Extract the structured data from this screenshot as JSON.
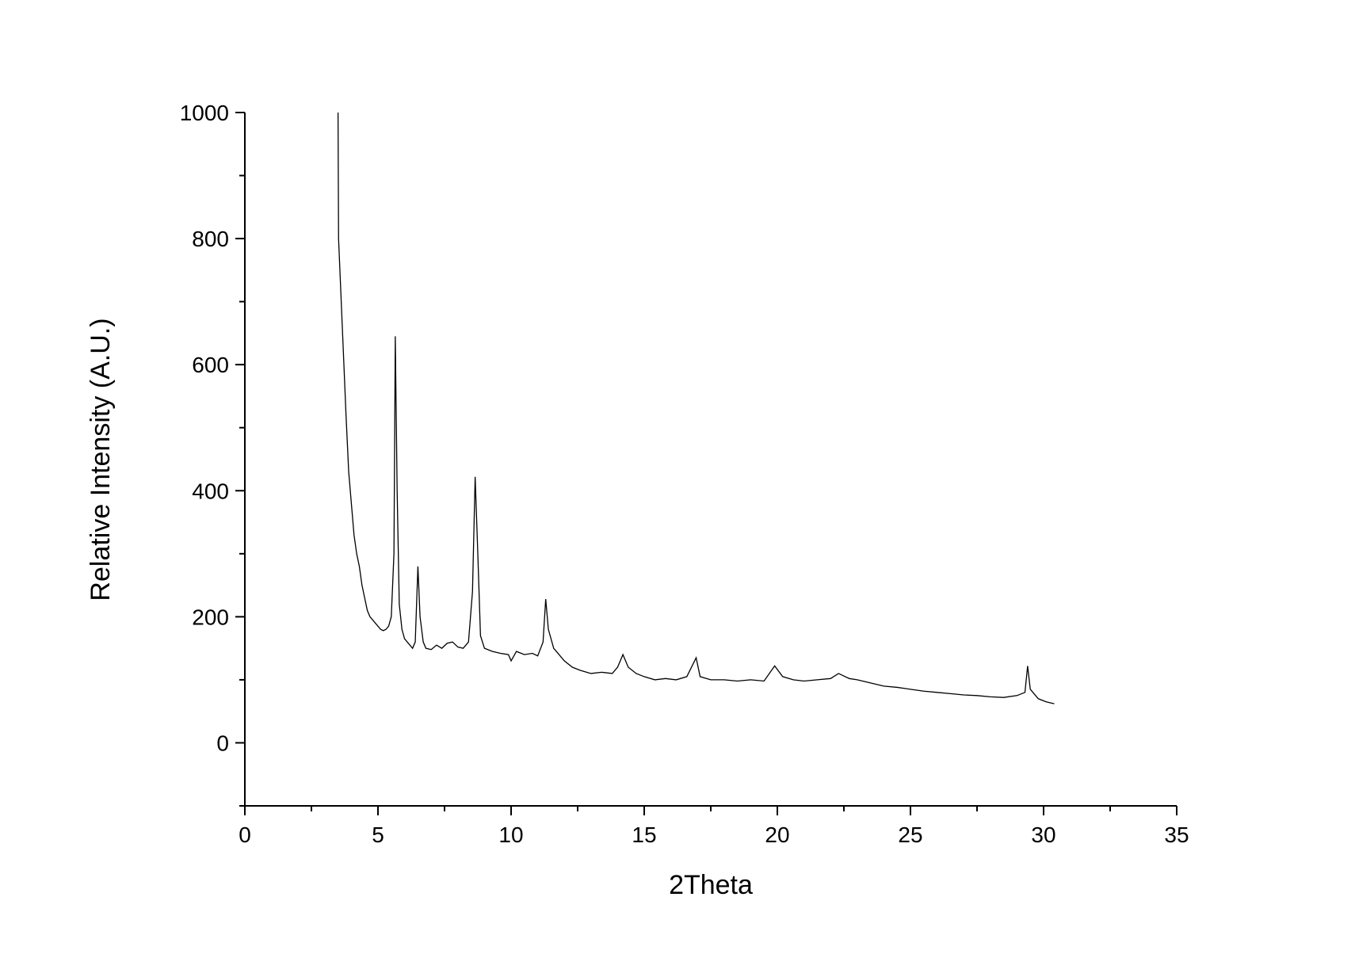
{
  "chart_data": {
    "type": "line",
    "x_label": "2Theta",
    "y_label": "Relative Intensity (A.U.)",
    "x": [
      3.5,
      3.52,
      3.6,
      3.7,
      3.8,
      3.9,
      4.0,
      4.1,
      4.2,
      4.3,
      4.4,
      4.5,
      4.6,
      4.7,
      4.8,
      4.9,
      5.0,
      5.1,
      5.2,
      5.3,
      5.4,
      5.5,
      5.6,
      5.65,
      5.72,
      5.8,
      5.9,
      6.0,
      6.1,
      6.2,
      6.3,
      6.4,
      6.5,
      6.58,
      6.7,
      6.8,
      7.0,
      7.2,
      7.4,
      7.6,
      7.8,
      8.0,
      8.2,
      8.4,
      8.55,
      8.65,
      8.75,
      8.85,
      9.0,
      9.3,
      9.6,
      9.9,
      10.0,
      10.2,
      10.5,
      10.8,
      11.0,
      11.2,
      11.3,
      11.4,
      11.6,
      11.8,
      12.0,
      12.3,
      12.6,
      13.0,
      13.4,
      13.8,
      14.0,
      14.2,
      14.4,
      14.7,
      15.0,
      15.4,
      15.8,
      16.2,
      16.6,
      16.95,
      17.1,
      17.5,
      18.0,
      18.5,
      19.0,
      19.5,
      19.9,
      20.2,
      20.6,
      21.0,
      21.5,
      22.0,
      22.3,
      22.7,
      23.0,
      23.5,
      24.0,
      24.5,
      25.0,
      25.5,
      26.0,
      26.5,
      27.0,
      27.5,
      28.0,
      28.5,
      29.0,
      29.3,
      29.4,
      29.5,
      29.8,
      30.1,
      30.4
    ],
    "series": [
      {
        "color": "#000000",
        "values": [
          1000,
          800,
          720,
          620,
          520,
          430,
          380,
          330,
          300,
          280,
          250,
          230,
          210,
          200,
          195,
          190,
          185,
          180,
          178,
          180,
          185,
          200,
          300,
          645,
          400,
          220,
          180,
          165,
          160,
          155,
          150,
          160,
          280,
          200,
          160,
          150,
          148,
          155,
          150,
          158,
          160,
          152,
          150,
          160,
          240,
          422,
          300,
          170,
          150,
          145,
          142,
          140,
          130,
          145,
          140,
          142,
          138,
          160,
          228,
          180,
          150,
          140,
          130,
          120,
          115,
          110,
          112,
          110,
          120,
          140,
          120,
          110,
          105,
          100,
          102,
          100,
          105,
          135,
          105,
          100,
          100,
          98,
          100,
          98,
          122,
          105,
          100,
          98,
          100,
          102,
          110,
          102,
          100,
          95,
          90,
          88,
          85,
          82,
          80,
          78,
          76,
          75,
          73,
          72,
          75,
          80,
          122,
          85,
          70,
          65,
          62
        ]
      }
    ],
    "xlim": [
      0,
      35
    ],
    "xticks": [
      0,
      5,
      10,
      15,
      20,
      25,
      30,
      35
    ],
    "xminorticks": [
      2.5,
      7.5,
      12.5,
      17.5,
      22.5,
      27.5,
      32.5
    ],
    "ylim": [
      -100,
      1000
    ],
    "yticks": [
      0,
      200,
      400,
      600,
      800,
      1000
    ],
    "yminorticks": [
      -100,
      100,
      300,
      500,
      700,
      900
    ],
    "grid": false
  }
}
